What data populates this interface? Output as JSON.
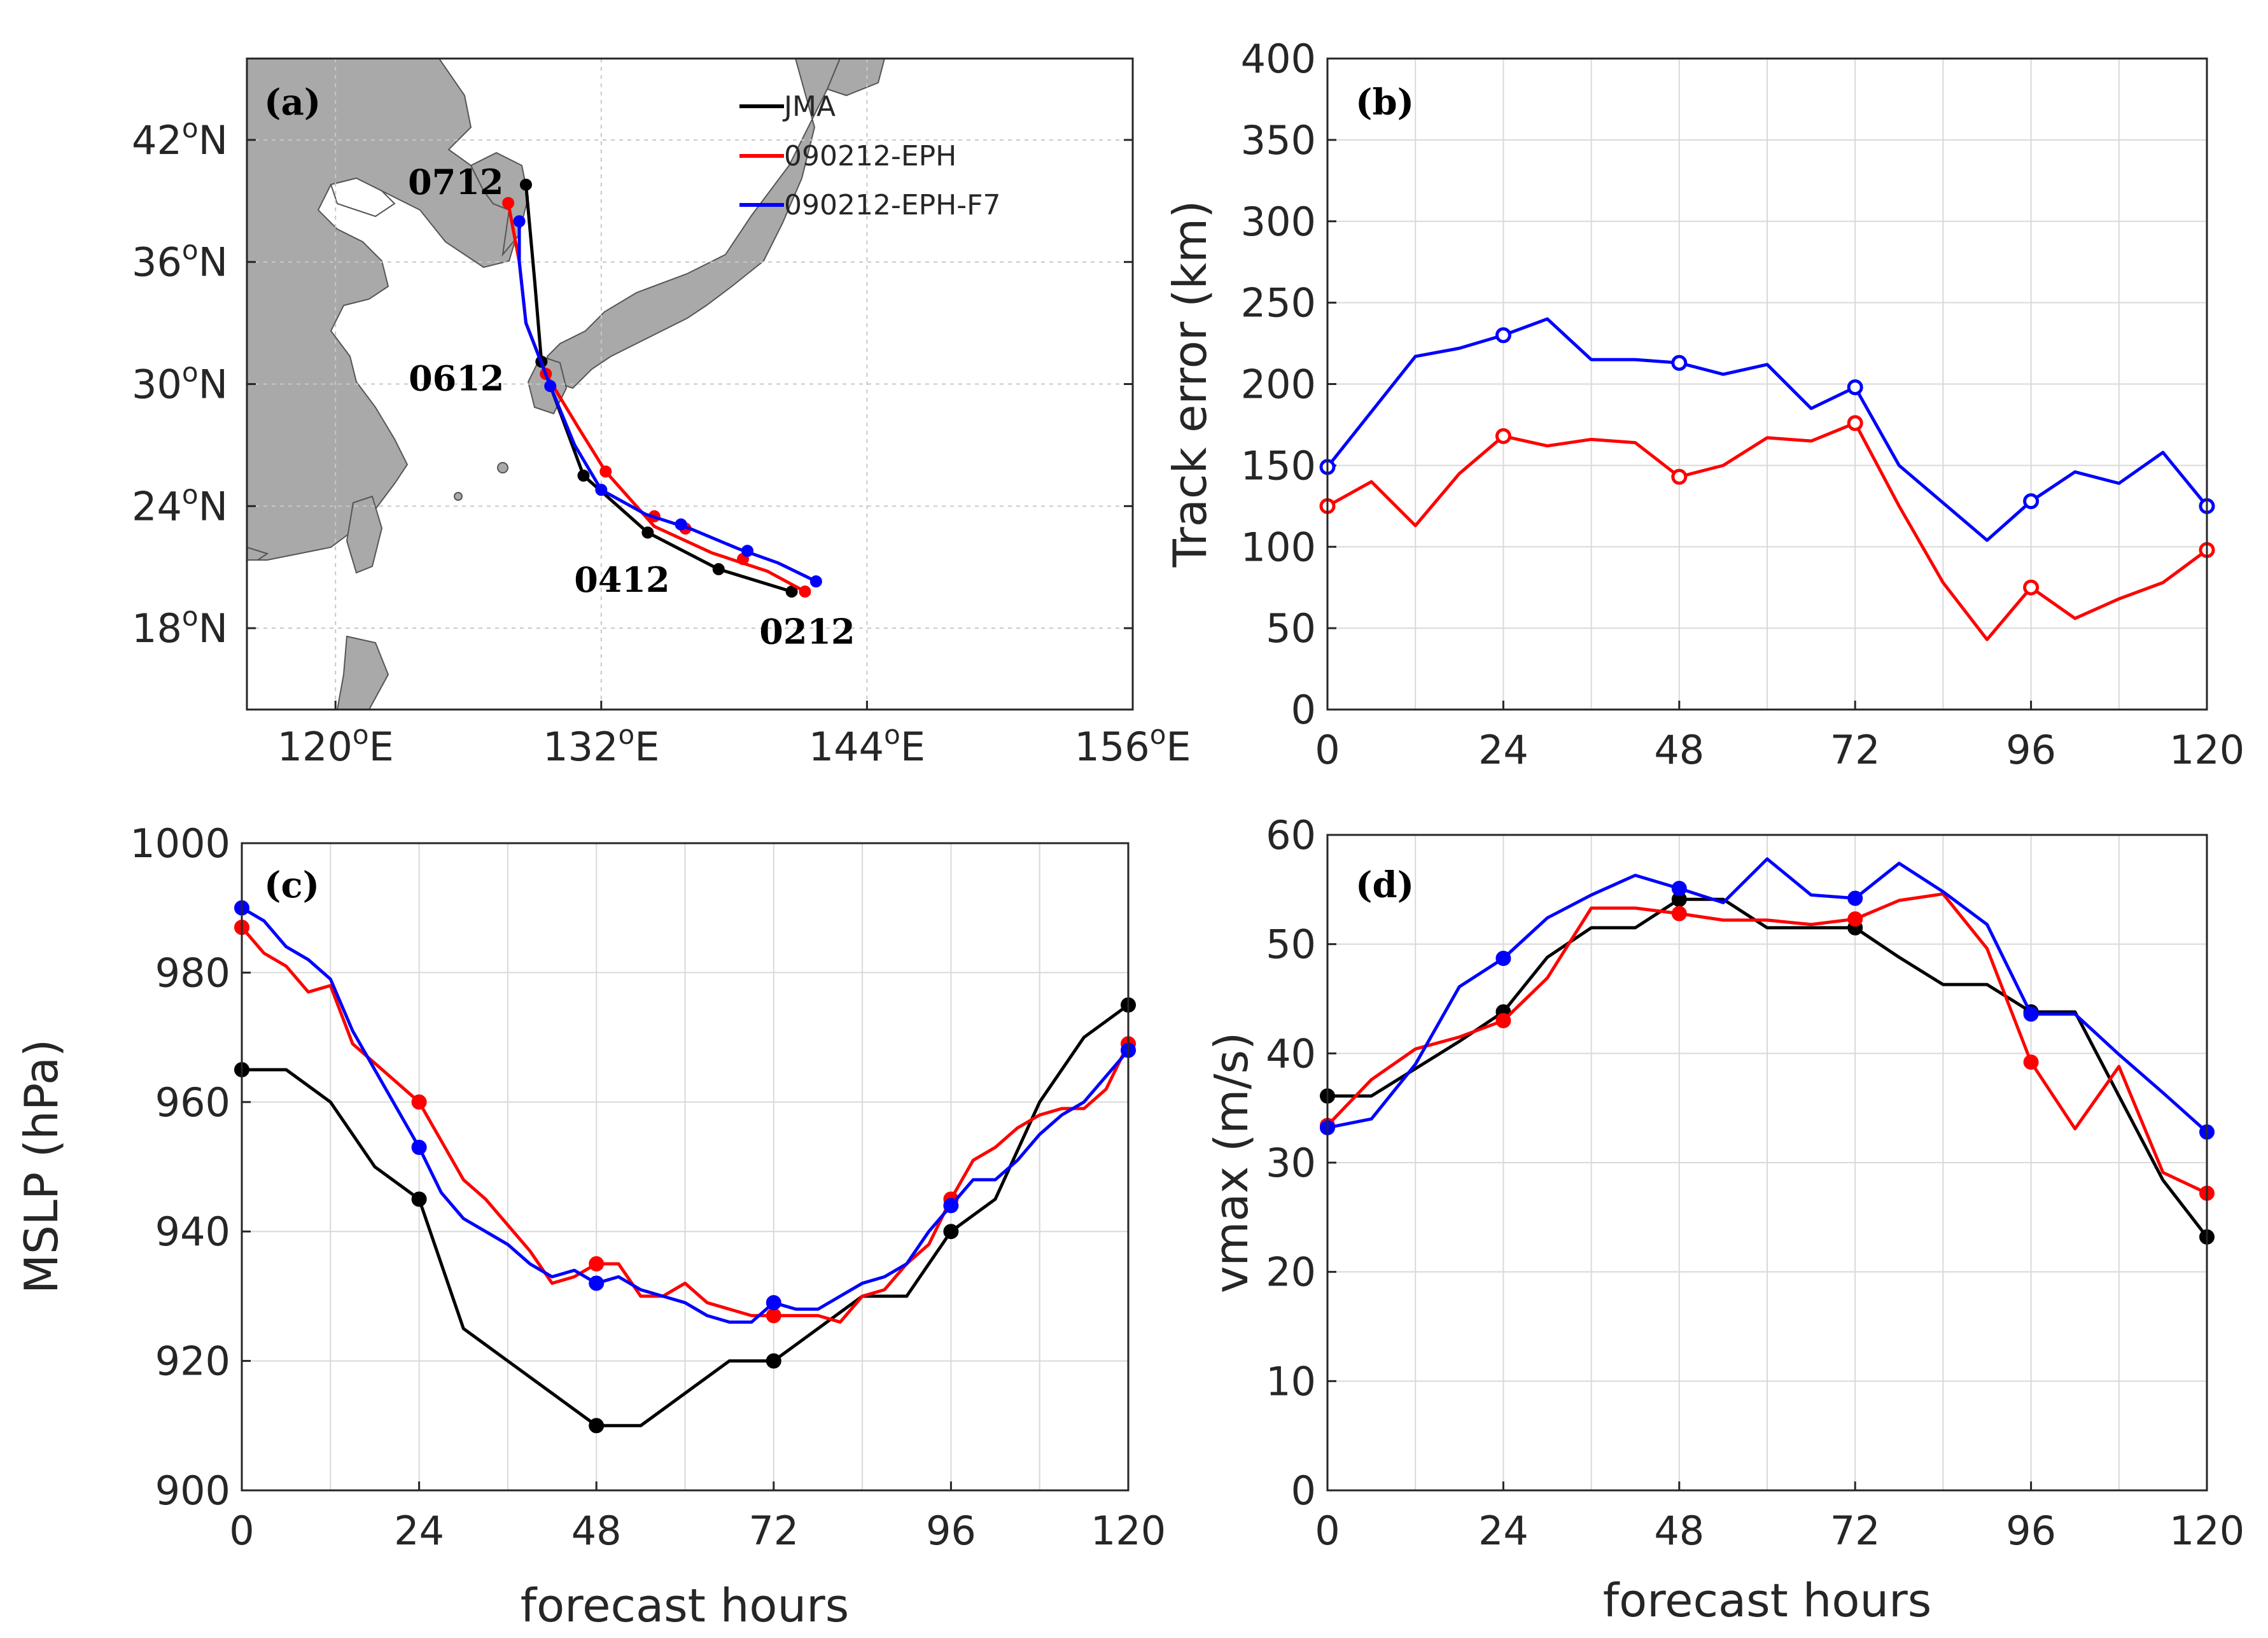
{
  "panels": {
    "a": "(a)",
    "b": "(b)",
    "c": "(c)",
    "d": "(d)"
  },
  "legend": [
    {
      "name": "JMA",
      "color": "#000000"
    },
    {
      "name": "090212-EPH",
      "color": "#ff0000"
    },
    {
      "name": "090212-EPH-F7",
      "color": "#0000ff"
    }
  ],
  "chart_data": [
    {
      "type": "line",
      "panel": "(a)",
      "xlabel": "",
      "ylabel": "",
      "xlim": [
        116,
        156
      ],
      "ylim": [
        14,
        46
      ],
      "xticks": [
        120,
        132,
        144,
        156
      ],
      "xtick_labels": [
        "120°E",
        "132°E",
        "144°E",
        "156°E"
      ],
      "yticks": [
        18,
        24,
        30,
        36,
        42
      ],
      "ytick_labels": [
        "18°N",
        "24°N",
        "30°N",
        "36°N",
        "42°N"
      ],
      "date_labels": [
        "0212",
        "0412",
        "0612",
        "0712"
      ],
      "series": [
        {
          "name": "JMA",
          "color": "#000000",
          "lon": [
            140.6,
            137.3,
            134.1,
            131.2,
            129.3,
            129.0,
            128.6
          ],
          "lat": [
            19.8,
            20.9,
            22.7,
            25.5,
            31.1,
            35.0,
            39.8
          ],
          "marker_lon": [
            140.6,
            137.3,
            134.1,
            131.2,
            129.3,
            128.6
          ],
          "marker_lat": [
            19.8,
            20.9,
            22.7,
            25.5,
            31.1,
            39.8
          ]
        },
        {
          "name": "090212-EPH",
          "color": "#ff0000",
          "lon": [
            141.2,
            139.5,
            137.0,
            134.4,
            132.2,
            131.0,
            129.5,
            128.6,
            128.3,
            127.8
          ],
          "lat": [
            19.8,
            20.8,
            21.7,
            23.0,
            25.7,
            27.8,
            30.5,
            33.0,
            36.0,
            38.9
          ],
          "marker_lon": [
            141.2,
            138.4,
            135.8,
            134.4,
            132.2,
            129.5,
            127.8
          ],
          "marker_lat": [
            19.8,
            21.4,
            22.9,
            23.5,
            25.7,
            30.5,
            38.9
          ],
          "marker_style": "filled"
        },
        {
          "name": "090212-EPH-F7",
          "color": "#0000ff",
          "lon": [
            141.7,
            140.0,
            138.2,
            136.0,
            134.0,
            132.0,
            130.8,
            129.7,
            128.6,
            128.3,
            128.3
          ],
          "lat": [
            20.3,
            21.2,
            21.9,
            22.9,
            23.6,
            24.8,
            27.0,
            29.9,
            33.0,
            36.0,
            38.0
          ],
          "marker_lon": [
            141.7,
            138.6,
            135.6,
            132.0,
            129.7,
            128.3
          ],
          "marker_lat": [
            20.3,
            21.8,
            23.1,
            24.8,
            29.9,
            38.0
          ]
        }
      ]
    },
    {
      "type": "line",
      "panel": "(b)",
      "xlabel": "",
      "ylabel": "Track error (km)",
      "xlim": [
        0,
        120
      ],
      "ylim": [
        0,
        400
      ],
      "xticks": [
        0,
        24,
        48,
        72,
        96,
        120
      ],
      "yticks": [
        0,
        50,
        100,
        150,
        200,
        250,
        300,
        350,
        400
      ],
      "grid": true,
      "x": [
        0,
        6,
        12,
        18,
        24,
        30,
        36,
        42,
        48,
        54,
        60,
        66,
        72,
        78,
        84,
        90,
        96,
        102,
        108,
        114,
        120
      ],
      "series": [
        {
          "name": "090212-EPH",
          "color": "#ff0000",
          "values": [
            125,
            140,
            113,
            145,
            168,
            162,
            166,
            164,
            143,
            150,
            167,
            165,
            176,
            125,
            78,
            43,
            75,
            56,
            68,
            78,
            98
          ],
          "marker_x": [
            0,
            24,
            48,
            72,
            96,
            120
          ],
          "marker_style": "open"
        },
        {
          "name": "090212-EPH-F7",
          "color": "#0000ff",
          "values": [
            149,
            183,
            217,
            222,
            230,
            240,
            215,
            215,
            213,
            206,
            212,
            185,
            198,
            150,
            127,
            104,
            128,
            146,
            139,
            158,
            125
          ],
          "marker_x": [
            0,
            24,
            48,
            72,
            96,
            120
          ],
          "marker_style": "open"
        }
      ]
    },
    {
      "type": "line",
      "panel": "(c)",
      "xlabel": "forecast hours",
      "ylabel": "MSLP (hPa)",
      "xlim": [
        0,
        120
      ],
      "ylim": [
        900,
        1000
      ],
      "xticks": [
        0,
        24,
        48,
        72,
        96,
        120
      ],
      "yticks": [
        900,
        920,
        940,
        960,
        980,
        1000
      ],
      "grid": true,
      "series": [
        {
          "name": "JMA",
          "color": "#000000",
          "x": [
            0,
            6,
            12,
            18,
            24,
            30,
            36,
            42,
            48,
            54,
            60,
            66,
            72,
            78,
            84,
            90,
            96,
            102,
            108,
            114,
            120
          ],
          "values": [
            965,
            965,
            960,
            950,
            945,
            925,
            920,
            915,
            910,
            910,
            915,
            920,
            920,
            925,
            930,
            930,
            940,
            945,
            960,
            970,
            975
          ],
          "marker_x": [
            0,
            24,
            48,
            72,
            96,
            120
          ]
        },
        {
          "name": "090212-EPH",
          "color": "#ff0000",
          "x": [
            0,
            3,
            6,
            9,
            12,
            15,
            18,
            21,
            24,
            27,
            30,
            33,
            36,
            39,
            42,
            45,
            48,
            51,
            54,
            57,
            60,
            63,
            66,
            69,
            72,
            75,
            78,
            81,
            84,
            87,
            90,
            93,
            96,
            99,
            102,
            105,
            108,
            111,
            114,
            117,
            120
          ],
          "values": [
            987,
            983,
            981,
            977,
            978,
            969,
            966,
            963,
            960,
            954,
            948,
            945,
            941,
            937,
            932,
            933,
            935,
            935,
            930,
            930,
            932,
            929,
            928,
            927,
            927,
            927,
            927,
            926,
            930,
            931,
            935,
            938,
            945,
            951,
            953,
            956,
            958,
            959,
            959,
            962,
            969
          ],
          "marker_x": [
            0,
            24,
            48,
            72,
            96,
            120
          ]
        },
        {
          "name": "090212-EPH-F7",
          "color": "#0000ff",
          "x": [
            0,
            3,
            6,
            9,
            12,
            15,
            18,
            21,
            24,
            27,
            30,
            33,
            36,
            39,
            42,
            45,
            48,
            51,
            54,
            57,
            60,
            63,
            66,
            69,
            72,
            75,
            78,
            81,
            84,
            87,
            90,
            93,
            96,
            99,
            102,
            105,
            108,
            111,
            114,
            117,
            120
          ],
          "values": [
            990,
            988,
            984,
            982,
            979,
            971,
            965,
            959,
            953,
            946,
            942,
            940,
            938,
            935,
            933,
            934,
            932,
            933,
            931,
            930,
            929,
            927,
            926,
            926,
            929,
            928,
            928,
            930,
            932,
            933,
            935,
            940,
            944,
            948,
            948,
            951,
            955,
            958,
            960,
            964,
            968
          ],
          "marker_x": [
            0,
            24,
            48,
            72,
            96,
            120
          ]
        }
      ]
    },
    {
      "type": "line",
      "panel": "(d)",
      "xlabel": "forecast hours",
      "ylabel": "vmax (m/s)",
      "xlim": [
        0,
        120
      ],
      "ylim": [
        0,
        60
      ],
      "xticks": [
        0,
        24,
        48,
        72,
        96,
        120
      ],
      "yticks": [
        0,
        10,
        20,
        30,
        40,
        50,
        60
      ],
      "grid": true,
      "series": [
        {
          "name": "JMA",
          "color": "#000000",
          "x": [
            0,
            6,
            12,
            18,
            24,
            30,
            36,
            42,
            48,
            54,
            60,
            66,
            72,
            78,
            84,
            90,
            96,
            102,
            108,
            114,
            120
          ],
          "values": [
            36.1,
            36.1,
            38.6,
            41.1,
            43.8,
            48.8,
            51.5,
            51.5,
            54.1,
            54.1,
            51.5,
            51.5,
            51.5,
            48.8,
            46.3,
            46.3,
            43.8,
            43.8,
            36.1,
            28.4,
            23.2
          ],
          "marker_x": [
            0,
            24,
            48,
            72,
            96,
            120
          ]
        },
        {
          "name": "090212-EPH",
          "color": "#ff0000",
          "x": [
            0,
            6,
            12,
            18,
            24,
            30,
            36,
            42,
            48,
            54,
            60,
            66,
            72,
            78,
            84,
            90,
            96,
            102,
            108,
            114,
            120
          ],
          "values": [
            33.4,
            37.6,
            40.4,
            41.5,
            43.0,
            46.9,
            53.3,
            53.3,
            52.8,
            52.2,
            52.2,
            51.8,
            52.3,
            54.0,
            54.6,
            49.6,
            39.2,
            33.1,
            38.8,
            29.1,
            27.2
          ],
          "marker_x": [
            0,
            24,
            48,
            72,
            96,
            120
          ]
        },
        {
          "name": "090212-EPH-F7",
          "color": "#0000ff",
          "x": [
            0,
            6,
            12,
            18,
            24,
            30,
            36,
            42,
            48,
            54,
            60,
            66,
            72,
            78,
            84,
            90,
            96,
            102,
            108,
            114,
            120
          ],
          "values": [
            33.2,
            34.0,
            39.0,
            46.1,
            48.7,
            52.4,
            54.5,
            56.3,
            55.1,
            53.8,
            57.8,
            54.5,
            54.2,
            57.4,
            54.8,
            51.8,
            43.6,
            43.6,
            39.9,
            36.4,
            32.8
          ],
          "marker_x": [
            0,
            24,
            48,
            72,
            96,
            120
          ]
        }
      ]
    }
  ]
}
